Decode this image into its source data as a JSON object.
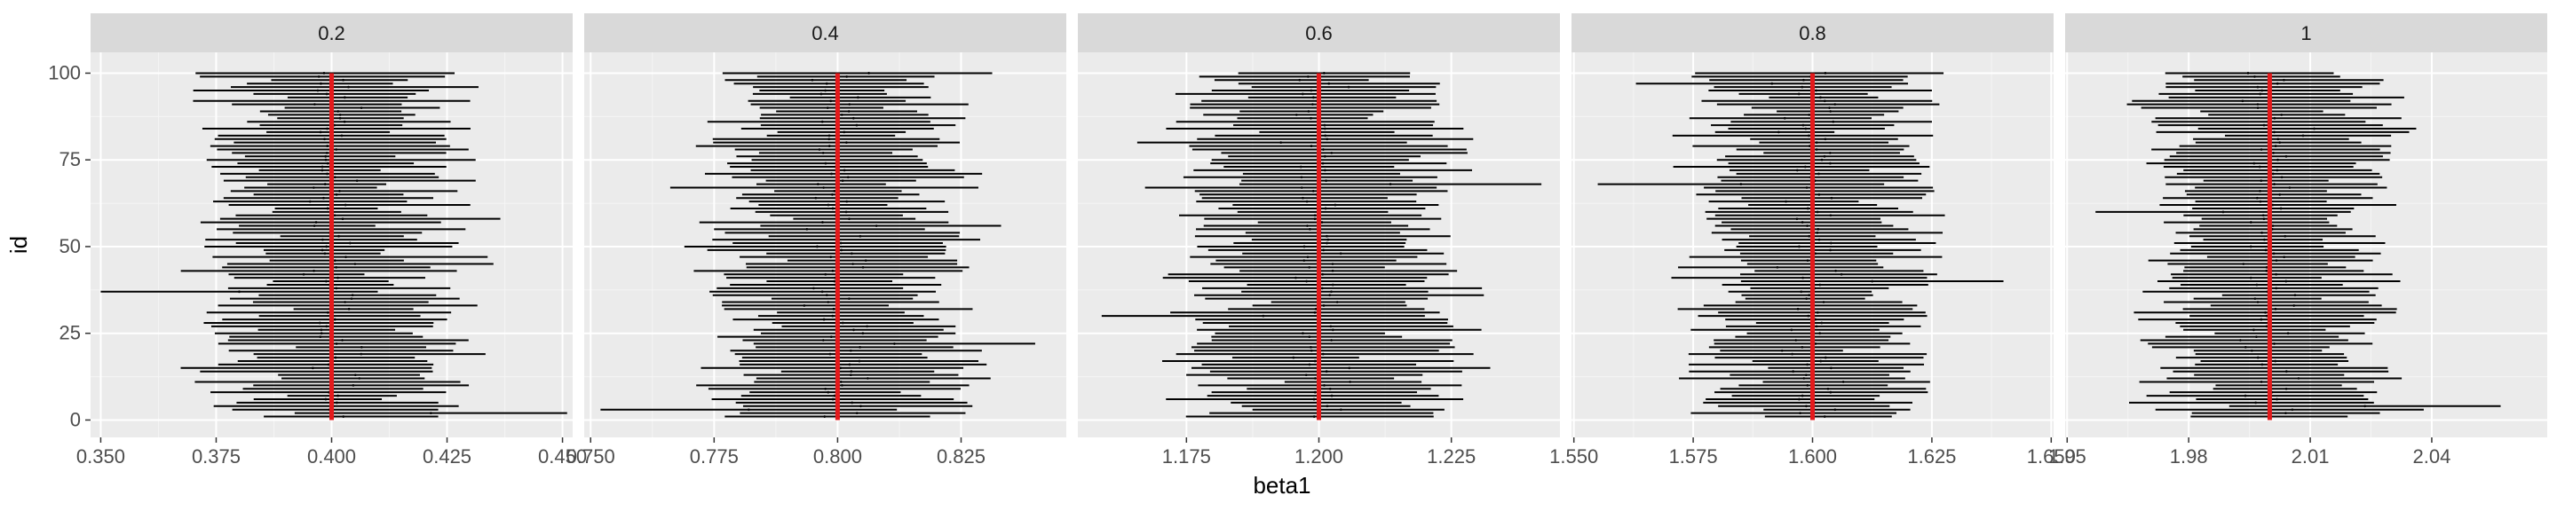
{
  "chart_data": {
    "type": "interval",
    "xlabel": "beta1",
    "ylabel": "id",
    "y_range": [
      -5,
      106
    ],
    "y_ticks": [
      0,
      25,
      50,
      75,
      100
    ],
    "y_tick_labels": [
      "0",
      "25",
      "50",
      "75",
      "100"
    ],
    "n_intervals_per_panel": 100,
    "interval_color": "#000000",
    "reference_line_color": "#e41a1c",
    "panel_background": "#ebebeb",
    "strip_background": "#d9d9d9",
    "grid": true,
    "panels": [
      {
        "facet": "0.2",
        "true_value": 0.4,
        "x_range": [
          0.3478,
          0.4522
        ],
        "x_ticks": [
          0.35,
          0.375,
          0.4,
          0.425,
          0.45
        ],
        "x_tick_labels": [
          "0.350",
          "0.375",
          "0.400",
          "0.425",
          "0.450"
        ],
        "ci_half_width_range": [
          0.012,
          0.03
        ],
        "outlier_intervals": [
          {
            "id": 37,
            "low": 0.35,
            "high": 0.41
          },
          {
            "id": 2,
            "low": 0.392,
            "high": 0.451
          },
          {
            "id": 92,
            "low": 0.37,
            "high": 0.43
          }
        ]
      },
      {
        "facet": "0.4",
        "true_value": 0.8,
        "x_range": [
          0.7487,
          0.8463
        ],
        "x_ticks": [
          0.75,
          0.775,
          0.8,
          0.825
        ],
        "x_tick_labels": [
          "0.750",
          "0.775",
          "0.800",
          "0.825"
        ],
        "ci_half_width_range": [
          0.012,
          0.028
        ],
        "outlier_intervals": [
          {
            "id": 3,
            "low": 0.752,
            "high": 0.812
          },
          {
            "id": 22,
            "low": 0.783,
            "high": 0.84
          }
        ]
      },
      {
        "facet": "0.6",
        "true_value": 1.2,
        "x_range": [
          1.1545,
          1.2455
        ],
        "x_ticks": [
          1.175,
          1.2,
          1.225
        ],
        "x_tick_labels": [
          "1.175",
          "1.200",
          "1.225"
        ],
        "ci_half_width_range": [
          0.012,
          0.028
        ],
        "outlier_intervals": [
          {
            "id": 30,
            "low": 1.159,
            "high": 1.22
          },
          {
            "id": 68,
            "low": 1.185,
            "high": 1.242
          }
        ]
      },
      {
        "facet": "0.8",
        "true_value": 1.6,
        "x_range": [
          1.5495,
          1.6505
        ],
        "x_ticks": [
          1.55,
          1.575,
          1.6,
          1.625,
          1.65
        ],
        "x_tick_labels": [
          "1.550",
          "1.575",
          "1.600",
          "1.625",
          "1.650"
        ],
        "ci_half_width_range": [
          0.012,
          0.026
        ],
        "outlier_intervals": [
          {
            "id": 68,
            "low": 1.555,
            "high": 1.615
          },
          {
            "id": 97,
            "low": 1.563,
            "high": 1.62
          },
          {
            "id": 40,
            "low": 1.585,
            "high": 1.64
          }
        ]
      },
      {
        "facet": "1",
        "true_value": 2.0,
        "x_range": [
          1.9495,
          2.0685
        ],
        "x_ticks": [
          1.95,
          1.98,
          2.01,
          2.04
        ],
        "x_tick_labels": [
          "1.95",
          "1.98",
          "2.01",
          "2.04"
        ],
        "ci_half_width_range": [
          0.015,
          0.03
        ],
        "outlier_intervals": [
          {
            "id": 4,
            "low": 1.99,
            "high": 2.057
          },
          {
            "id": 60,
            "low": 1.957,
            "high": 2.02
          }
        ]
      }
    ]
  }
}
